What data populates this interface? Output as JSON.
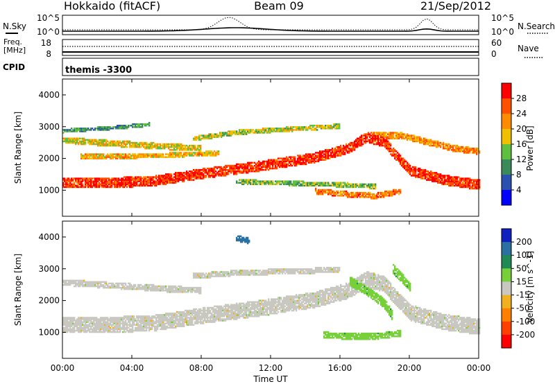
{
  "header": {
    "station": "Hokkaido (fitACF)",
    "beam": "Beam 09",
    "date": "21/Sep/2012"
  },
  "noise_panel": {
    "label": "N.Sky",
    "right_label": "N.Search",
    "yticks_left": [
      "10^5",
      "10^0"
    ],
    "yticks_right": [
      "10^5",
      "10^0"
    ]
  },
  "freq_panel": {
    "label_line1": "Freq.",
    "label_line2": "[MHz]",
    "right_label": "Nave",
    "yticks_left": [
      "18",
      "8"
    ],
    "yticks_right": [
      "60",
      "0"
    ]
  },
  "cpid_panel": {
    "label": "CPID",
    "program": "themis -3300"
  },
  "x_axis": {
    "label": "Time UT",
    "ticks": [
      "00:00",
      "04:00",
      "08:00",
      "12:00",
      "16:00",
      "20:00",
      "00:00"
    ]
  },
  "chart_data": [
    {
      "type": "heatmap",
      "title": "Power",
      "xlabel": "Time UT",
      "ylabel": "Slant Range [km]",
      "ylim": [
        180,
        4500
      ],
      "yticks": [
        1000,
        2000,
        3000,
        4000
      ],
      "colorbar": {
        "label": "Power [dB]",
        "ticks": [
          4,
          8,
          12,
          16,
          20,
          24,
          28
        ],
        "colors": [
          "#0000ff",
          "#2a50b0",
          "#3a8a5a",
          "#5fbf3f",
          "#f0c000",
          "#ff8c00",
          "#ff5000",
          "#ff0000"
        ]
      },
      "bands": [
        {
          "t": [
            0,
            5.0,
            8.0,
            11.5,
            14.5,
            16.5,
            17.5,
            18.5,
            20.0,
            22.0,
            24.0
          ],
          "r": [
            1200,
            1250,
            1500,
            1750,
            2000,
            2300,
            2650,
            2500,
            1600,
            1300,
            1150
          ],
          "width": 320,
          "power": 28
        },
        {
          "t": [
            0,
            3.0,
            6.0,
            8.0
          ],
          "r": [
            2550,
            2450,
            2350,
            2300
          ],
          "width": 200,
          "power": 18
        },
        {
          "t": [
            1.0,
            4.0,
            7.0,
            9.0
          ],
          "r": [
            2050,
            2050,
            2100,
            2150
          ],
          "width": 150,
          "power": 20
        },
        {
          "t": [
            10.0,
            13.0,
            16.0,
            18.0
          ],
          "r": [
            1250,
            1200,
            1150,
            1100
          ],
          "width": 150,
          "power": 14
        },
        {
          "t": [
            14.5,
            16.5,
            18.0,
            19.5
          ],
          "r": [
            950,
            850,
            800,
            950
          ],
          "width": 180,
          "power": 24
        },
        {
          "t": [
            7.5,
            10.0,
            13.0,
            16.0
          ],
          "r": [
            2600,
            2800,
            2900,
            3000
          ],
          "width": 150,
          "power": 16
        },
        {
          "t": [
            17.5,
            19.5,
            21.0,
            22.5,
            24.0
          ],
          "r": [
            2700,
            2700,
            2500,
            2300,
            2200
          ],
          "width": 200,
          "power": 22
        },
        {
          "t": [
            0,
            3.0,
            5.0
          ],
          "r": [
            2850,
            2950,
            3050
          ],
          "width": 120,
          "power": 10
        }
      ]
    },
    {
      "type": "heatmap",
      "title": "Velocity",
      "xlabel": "Time UT",
      "ylabel": "Slant Range [km]",
      "ylim": [
        180,
        4500
      ],
      "yticks": [
        1000,
        2000,
        3000,
        4000
      ],
      "colorbar": {
        "label": "Velocity [m s^-1]",
        "ticks": [
          200,
          100,
          50,
          15,
          -15,
          -50,
          -100,
          -200
        ],
        "colors": [
          "#1020c0",
          "#2a70a0",
          "#1f8a55",
          "#77d03a",
          "#c8c8c0",
          "#f0b020",
          "#ff8000",
          "#ff4000",
          "#ff0000"
        ]
      },
      "bands": [
        {
          "t": [
            0,
            5.0,
            8.0,
            11.5,
            14.5,
            16.5,
            17.5,
            18.5,
            20.0,
            22.0,
            24.0
          ],
          "r": [
            1200,
            1250,
            1500,
            1750,
            2000,
            2300,
            2650,
            2500,
            1600,
            1300,
            1150
          ],
          "width": 500,
          "velocity": 0
        },
        {
          "t": [
            0,
            3.0,
            6.0,
            8.0
          ],
          "r": [
            2550,
            2450,
            2350,
            2300
          ],
          "width": 200,
          "velocity": 0
        },
        {
          "t": [
            7.5,
            10.0,
            13.0,
            16.0
          ],
          "r": [
            2750,
            2850,
            2900,
            2950
          ],
          "width": 180,
          "velocity": 0
        },
        {
          "t": [
            15.0,
            16.5,
            18.0,
            19.5
          ],
          "r": [
            900,
            850,
            850,
            950
          ],
          "width": 200,
          "velocity": 35
        },
        {
          "t": [
            16.5,
            17.5,
            18.5,
            19.0
          ],
          "r": [
            2600,
            2300,
            1900,
            1500
          ],
          "width": 300,
          "velocity": 35
        },
        {
          "t": [
            19.0,
            19.5,
            20.0
          ],
          "r": [
            3000,
            2700,
            2400
          ],
          "width": 300,
          "velocity": 35
        },
        {
          "t": [
            10.0,
            10.8
          ],
          "r": [
            3950,
            3850
          ],
          "width": 200,
          "velocity": 180
        }
      ]
    }
  ]
}
